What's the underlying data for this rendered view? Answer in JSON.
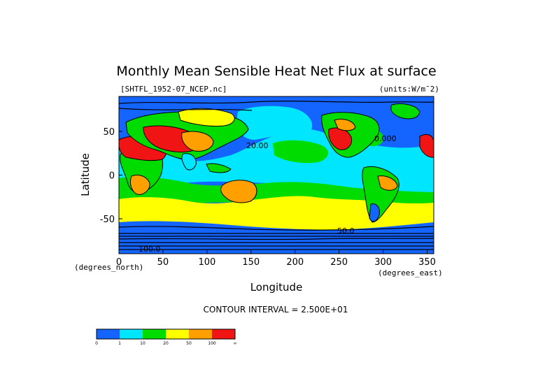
{
  "chart_data": {
    "type": "heatmap",
    "title": "Monthly Mean Sensible Heat Net Flux at surface",
    "file_label": "[SHTFL_1952-07_NCEP.nc]",
    "units_label": "(units:W/m^2)",
    "xlabel": "Longitude",
    "ylabel": "Latitude",
    "x_unit_note": "(degrees_east)",
    "y_unit_note": "(degrees_north)",
    "xlim": [
      0,
      357.5
    ],
    "ylim": [
      -90,
      90
    ],
    "x_ticks": [
      "0",
      "50",
      "100",
      "150",
      "200",
      "250",
      "300",
      "350"
    ],
    "y_ticks": [
      "50",
      "0",
      "-50"
    ],
    "contour_caption": "CONTOUR INTERVAL = 2.500E+01",
    "contour_labels": [
      "20.00",
      "0.000",
      "50.0",
      "100.0"
    ],
    "legend": {
      "colors": [
        "#1464ff",
        "#00e6ff",
        "#00dc00",
        "#ffff00",
        "#ffa000",
        "#f01414"
      ],
      "boundaries": [
        "0",
        "1",
        "10",
        "20",
        "50",
        "100",
        "∞"
      ]
    }
  },
  "colors": {
    "ocean_cool": "#1464ff",
    "ocean": "#00e6ff",
    "mid": "#00dc00",
    "warm": "#ffff00",
    "hot": "#ffa000",
    "hottest": "#f01414"
  }
}
